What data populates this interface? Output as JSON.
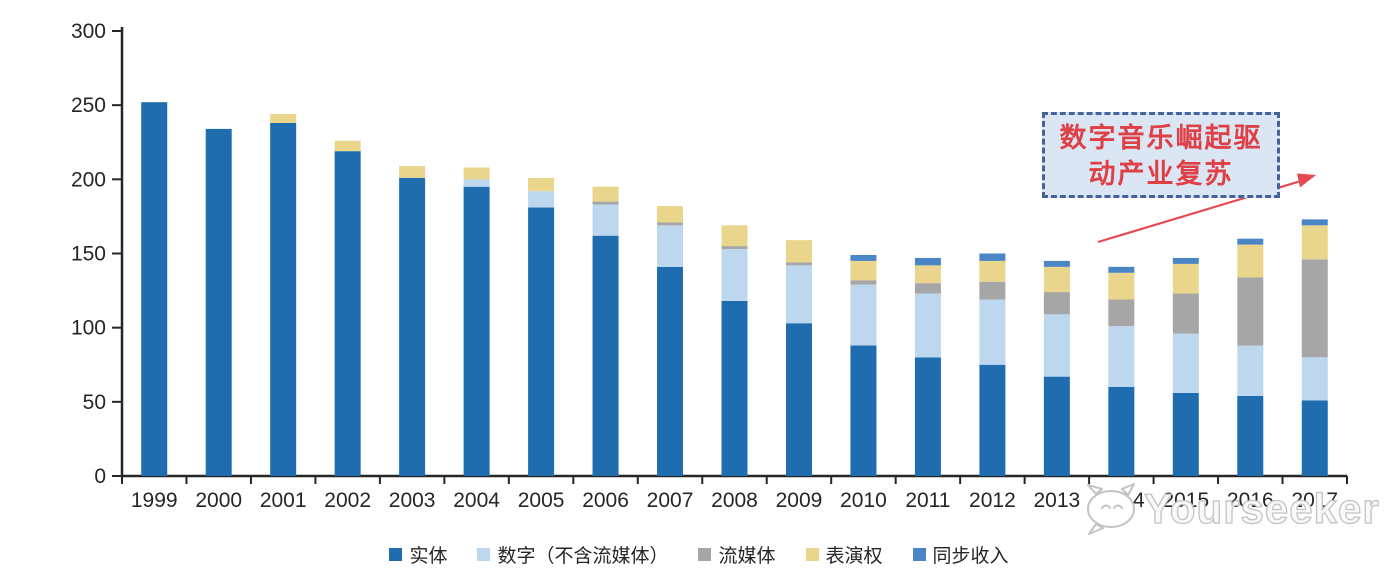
{
  "chart_data": {
    "type": "bar",
    "stacked": true,
    "title": "",
    "xlabel": "",
    "ylabel": "",
    "ylim": [
      0,
      300
    ],
    "yticks": [
      0,
      50,
      100,
      150,
      200,
      250,
      300
    ],
    "grid": false,
    "legend_position": "bottom",
    "categories": [
      "1999",
      "2000",
      "2001",
      "2002",
      "2003",
      "2004",
      "2005",
      "2006",
      "2007",
      "2008",
      "2009",
      "2010",
      "2011",
      "2012",
      "2013",
      "2014",
      "2015",
      "2016",
      "2017"
    ],
    "series": [
      {
        "name": "实体",
        "color": "#1F6DAF",
        "values": [
          252,
          234,
          238,
          219,
          201,
          195,
          181,
          162,
          141,
          118,
          103,
          88,
          80,
          75,
          67,
          60,
          56,
          54,
          51
        ]
      },
      {
        "name": "数字（不含流媒体）",
        "color": "#BDD7EE",
        "values": [
          0,
          0,
          0,
          0,
          0,
          5,
          11,
          21,
          28,
          35,
          39,
          41,
          43,
          44,
          42,
          41,
          40,
          34,
          29
        ]
      },
      {
        "name": "流媒体",
        "color": "#A6A6A6",
        "values": [
          0,
          0,
          0,
          0,
          0,
          0,
          0,
          2,
          2,
          2,
          2,
          3,
          7,
          12,
          15,
          18,
          27,
          46,
          66
        ]
      },
      {
        "name": "表演权",
        "color": "#E9D58C",
        "values": [
          0,
          0,
          6,
          7,
          8,
          8,
          9,
          10,
          11,
          14,
          15,
          13,
          12,
          14,
          17,
          18,
          20,
          22,
          23
        ]
      },
      {
        "name": "同步收入",
        "color": "#4A86C6",
        "values": [
          0,
          0,
          0,
          0,
          0,
          0,
          0,
          0,
          0,
          0,
          0,
          4,
          5,
          5,
          4,
          4,
          4,
          4,
          4
        ]
      }
    ],
    "axis_color": "#262626",
    "tick_label_color": "#262626",
    "tick_label_size": 21
  },
  "annotation": {
    "line1": "数字音乐崛起驱",
    "line2": "动产业复苏",
    "text_color": "#de4046",
    "box_fill": "#dbe6f4",
    "box_border_color": "#44639c",
    "arrow_color": "#e64a50"
  },
  "watermark": {
    "text": "Yourseeker",
    "logo": "speech-bubble-cat-icon",
    "color": "#c3c3c3"
  }
}
